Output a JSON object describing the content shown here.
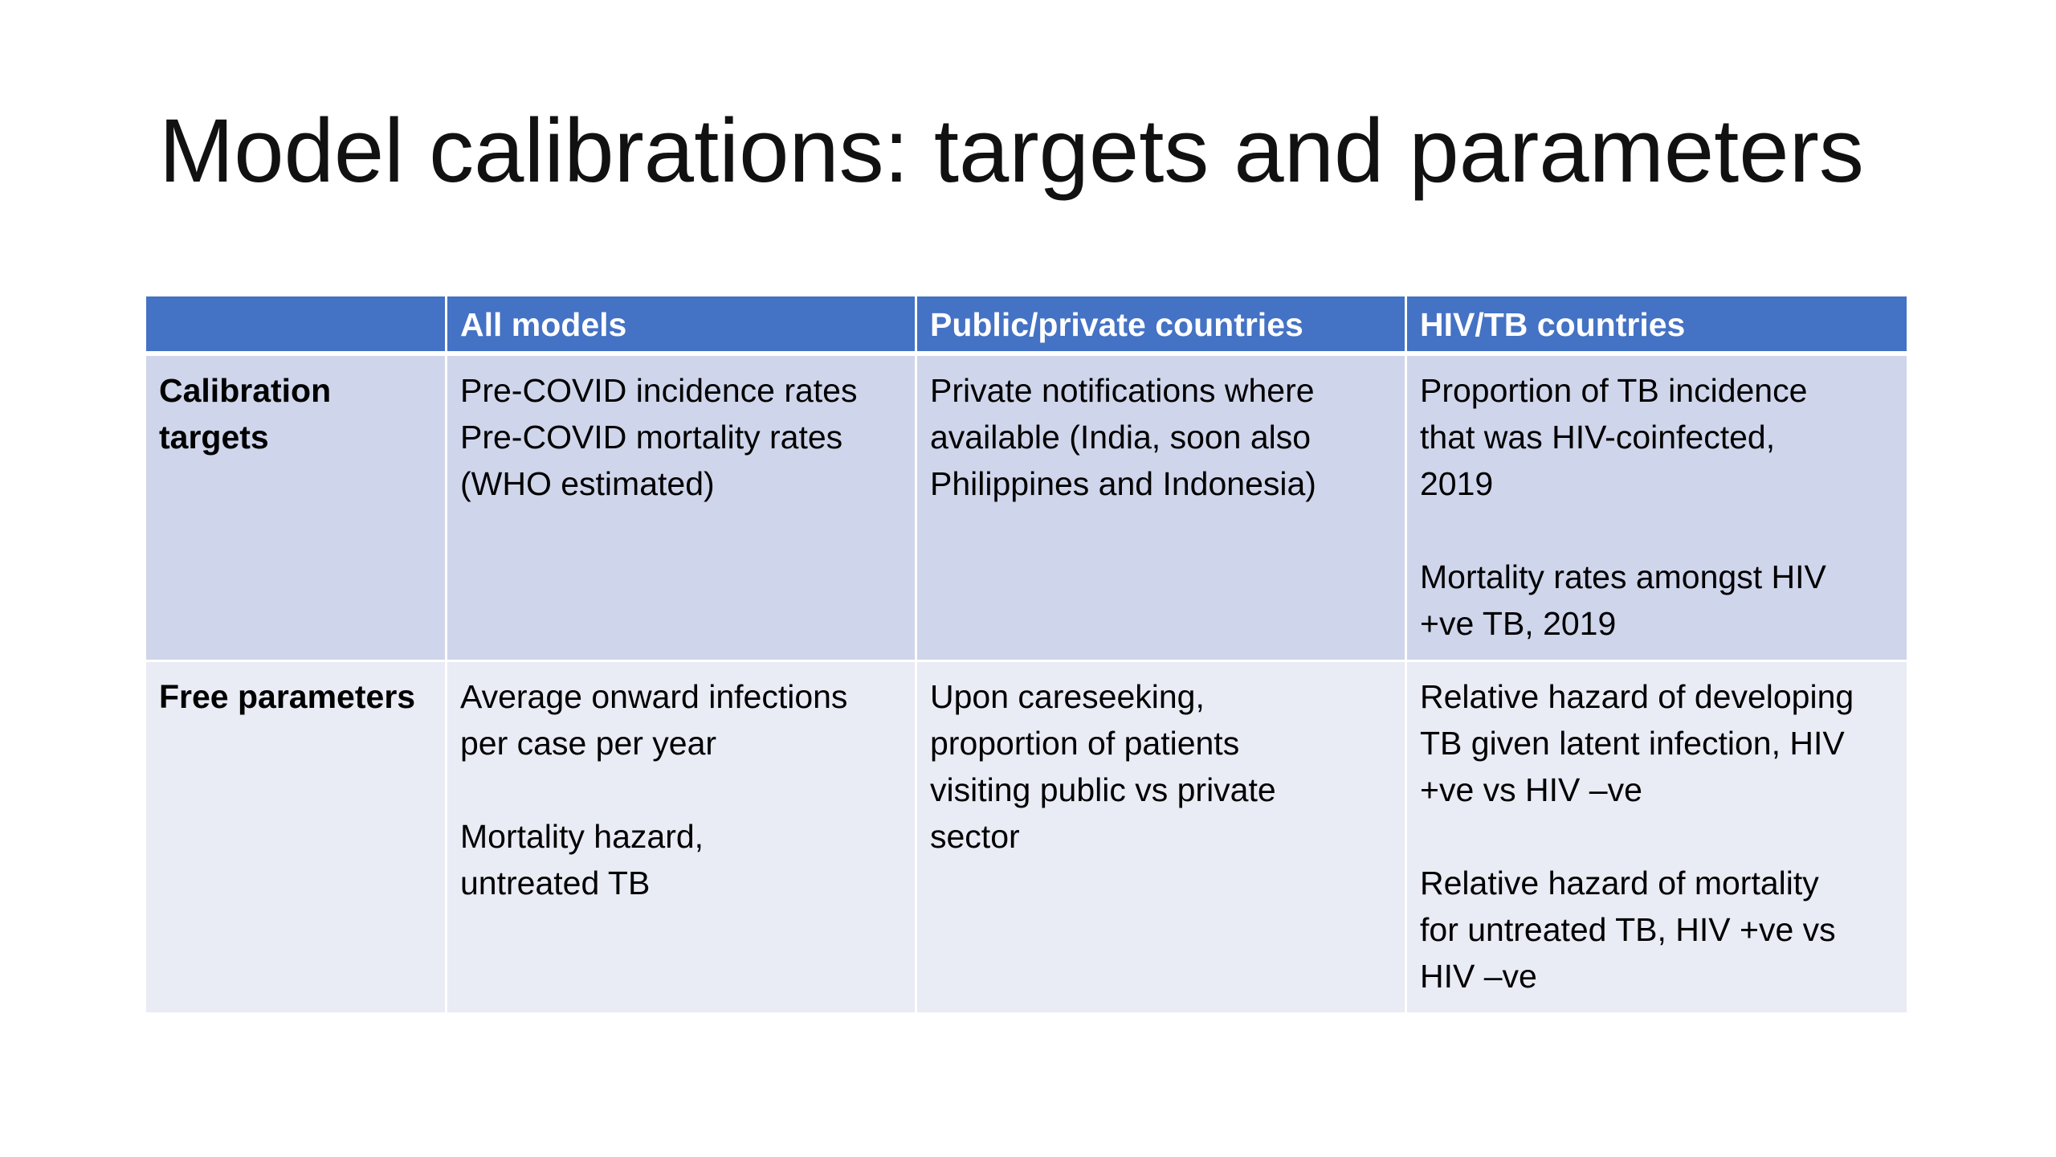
{
  "slide": {
    "title": "Model calibrations: targets and parameters"
  },
  "table": {
    "headers": [
      "",
      "All models",
      "Public/private countries",
      "HIV/TB countries"
    ],
    "rows": [
      {
        "label": "Calibration\ntargets",
        "cells": [
          "Pre-COVID incidence rates\nPre-COVID mortality rates\n(WHO estimated)",
          "Private notifications where\navailable (India, soon also\nPhilippines and Indonesia)",
          "Proportion of TB incidence\nthat was  HIV-coinfected,\n2019\n\nMortality rates amongst HIV\n+ve TB, 2019"
        ]
      },
      {
        "label": "Free parameters",
        "cells": [
          "Average onward infections\nper case per year\n\nMortality hazard,\nuntreated TB",
          "Upon careseeking,\nproportion of patients\nvisiting public vs private\nsector",
          "Relative hazard of developing\nTB given latent infection, HIV\n+ve vs HIV –ve\n\nRelative hazard of mortality\nfor untreated TB, HIV +ve vs\nHIV –ve"
        ]
      }
    ]
  },
  "colors": {
    "header_fill": "#4472c4",
    "row1_fill": "#cfd5ea",
    "row2_fill": "#e9ebf5"
  }
}
